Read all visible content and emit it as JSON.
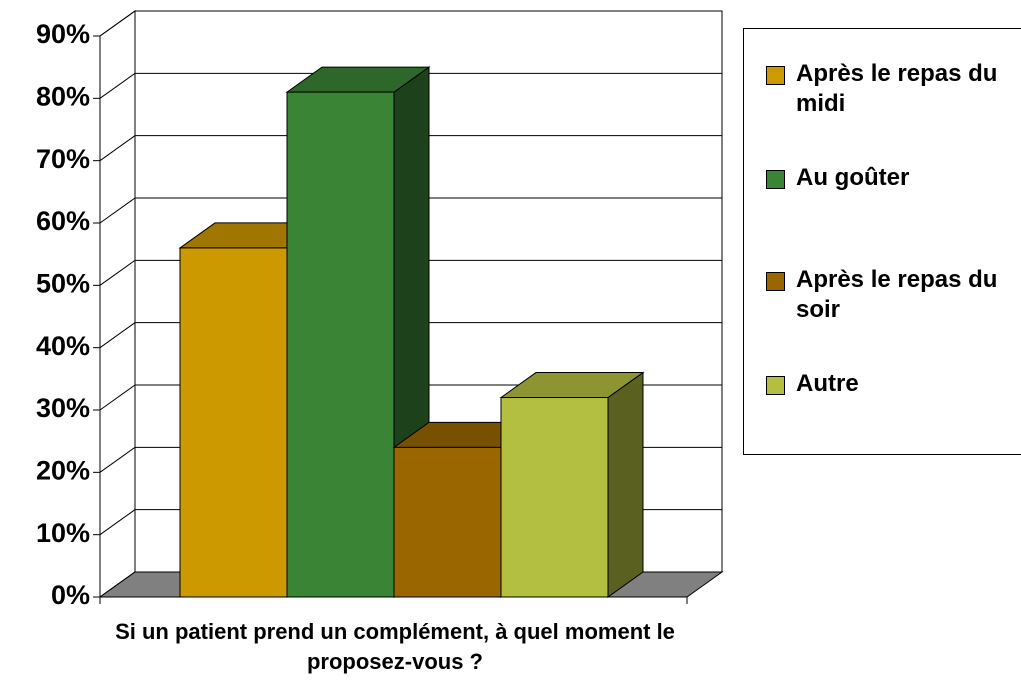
{
  "chart_data": {
    "type": "bar3d",
    "x_label": "Si un patient prend un complément, à quel moment le proposez-vous ?",
    "series": [
      {
        "name": "Après le repas du midi",
        "color": "#cc9900",
        "values": [
          56
        ]
      },
      {
        "name": "Au goûter",
        "color": "#3a8435",
        "values": [
          81
        ]
      },
      {
        "name": "Après le repas du soir",
        "color": "#996600",
        "values": [
          24
        ]
      },
      {
        "name": "Autre",
        "color": "#b3bf40",
        "values": [
          32
        ]
      }
    ],
    "ylim": [
      0,
      90
    ],
    "yticks": [
      {
        "value": 0,
        "label": "0%"
      },
      {
        "value": 10,
        "label": "10%"
      },
      {
        "value": 20,
        "label": "20%"
      },
      {
        "value": 30,
        "label": "30%"
      },
      {
        "value": 40,
        "label": "40%"
      },
      {
        "value": 50,
        "label": "50%"
      },
      {
        "value": 60,
        "label": "60%"
      },
      {
        "value": 70,
        "label": "70%"
      },
      {
        "value": 80,
        "label": "80%"
      },
      {
        "value": 90,
        "label": "90%"
      }
    ],
    "grid": true,
    "legend": "right"
  }
}
